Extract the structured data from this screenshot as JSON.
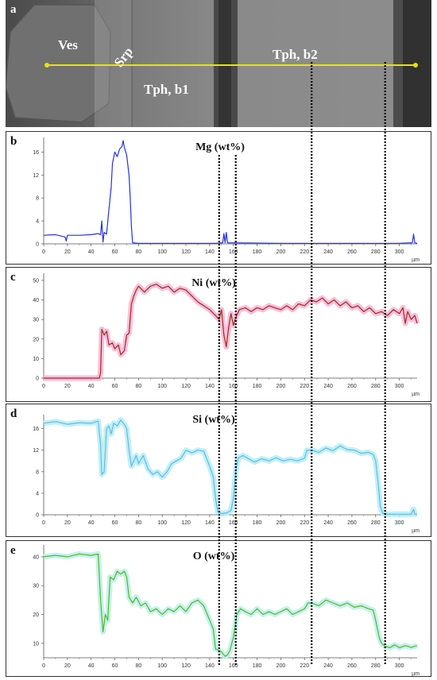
{
  "sem": {
    "letter": "a",
    "labels": [
      {
        "text": "Ves"
      },
      {
        "text": "Srp"
      },
      {
        "text": "Tph, b1"
      },
      {
        "text": "Tph, b2"
      }
    ]
  },
  "colors": {
    "mg": "#2233dd",
    "ni": "#a02a1a",
    "ni_glow": "#f7b8d8",
    "si": "#66b8ea",
    "si_glow": "#b8eef5",
    "o": "#55b81f",
    "o_glow": "#bff0f0",
    "guide": "#e6e600"
  },
  "chart_data": [
    {
      "type": "line",
      "letter": "b",
      "title": "Mg (wt%)",
      "unit_label": "µm",
      "xlim": [
        0,
        315
      ],
      "ylim": [
        0,
        18
      ],
      "x_ticks": [
        0,
        20,
        40,
        60,
        80,
        100,
        120,
        140,
        160,
        180,
        200,
        220,
        240,
        260,
        280,
        300
      ],
      "y_ticks": [
        0,
        4,
        8,
        12,
        16
      ],
      "series": [
        {
          "points": [
            [
              0,
              1.5
            ],
            [
              10,
              1.6
            ],
            [
              18,
              1.2
            ],
            [
              19,
              0.5
            ],
            [
              20,
              1.5
            ],
            [
              30,
              1.5
            ],
            [
              40,
              1.6
            ],
            [
              46,
              1.8
            ],
            [
              48,
              1.6
            ],
            [
              49,
              4
            ],
            [
              50,
              0.3
            ],
            [
              51,
              2
            ],
            [
              53,
              1.7
            ],
            [
              55,
              6
            ],
            [
              57,
              10
            ],
            [
              58,
              14
            ],
            [
              60,
              16
            ],
            [
              62,
              15.2
            ],
            [
              64,
              16.5
            ],
            [
              66,
              17
            ],
            [
              67,
              18
            ],
            [
              68,
              16.8
            ],
            [
              70,
              15.5
            ],
            [
              72,
              12
            ],
            [
              73,
              8
            ],
            [
              74,
              3
            ],
            [
              75,
              0.2
            ],
            [
              80,
              0.1
            ],
            [
              145,
              0.1
            ],
            [
              151,
              0.2
            ],
            [
              152,
              1.8
            ],
            [
              153,
              0.2
            ],
            [
              154,
              2
            ],
            [
              155,
              0.2
            ],
            [
              200,
              0.1
            ],
            [
              300,
              0.1
            ],
            [
              311,
              0.2
            ],
            [
              312,
              1.7
            ],
            [
              313,
              0.2
            ],
            [
              315,
              0.1
            ]
          ]
        }
      ]
    },
    {
      "type": "line",
      "letter": "c",
      "title": "Ni (wt%)",
      "unit_label": "µm",
      "xlim": [
        0,
        315
      ],
      "ylim": [
        0,
        52
      ],
      "x_ticks": [
        0,
        20,
        40,
        60,
        80,
        100,
        120,
        140,
        160,
        180,
        200,
        220,
        240,
        260,
        280,
        300
      ],
      "y_ticks": [
        0,
        10,
        20,
        30,
        40,
        50
      ],
      "series": [
        {
          "points": [
            [
              0,
              0
            ],
            [
              47,
              0
            ],
            [
              48,
              3
            ],
            [
              49,
              25
            ],
            [
              51,
              22
            ],
            [
              53,
              24
            ],
            [
              55,
              17
            ],
            [
              58,
              18
            ],
            [
              60,
              15
            ],
            [
              63,
              17
            ],
            [
              65,
              12
            ],
            [
              68,
              14
            ],
            [
              70,
              22
            ],
            [
              72,
              23
            ],
            [
              74,
              38
            ],
            [
              76,
              42
            ],
            [
              78,
              45
            ],
            [
              80,
              47
            ],
            [
              85,
              44
            ],
            [
              90,
              47
            ],
            [
              95,
              48
            ],
            [
              100,
              46
            ],
            [
              105,
              47
            ],
            [
              110,
              44
            ],
            [
              115,
              46
            ],
            [
              120,
              45
            ],
            [
              125,
              42
            ],
            [
              130,
              39
            ],
            [
              135,
              37
            ],
            [
              140,
              35
            ],
            [
              145,
              32
            ],
            [
              148,
              30
            ],
            [
              150,
              35
            ],
            [
              152,
              22
            ],
            [
              154,
              16
            ],
            [
              156,
              26
            ],
            [
              158,
              33
            ],
            [
              160,
              27
            ],
            [
              162,
              31
            ],
            [
              165,
              35
            ],
            [
              170,
              36
            ],
            [
              175,
              34
            ],
            [
              180,
              36
            ],
            [
              185,
              35
            ],
            [
              190,
              37
            ],
            [
              195,
              36
            ],
            [
              200,
              35
            ],
            [
              205,
              37
            ],
            [
              210,
              35
            ],
            [
              215,
              38
            ],
            [
              220,
              37
            ],
            [
              225,
              40
            ],
            [
              230,
              39
            ],
            [
              235,
              41
            ],
            [
              240,
              38
            ],
            [
              245,
              40
            ],
            [
              250,
              37
            ],
            [
              255,
              39
            ],
            [
              260,
              36
            ],
            [
              265,
              37
            ],
            [
              270,
              34
            ],
            [
              275,
              36
            ],
            [
              280,
              33
            ],
            [
              285,
              34
            ],
            [
              290,
              32
            ],
            [
              295,
              35
            ],
            [
              300,
              33
            ],
            [
              303,
              36
            ],
            [
              305,
              28
            ],
            [
              307,
              34
            ],
            [
              310,
              30
            ],
            [
              313,
              32
            ],
            [
              315,
              28
            ]
          ]
        }
      ]
    },
    {
      "type": "line",
      "letter": "d",
      "title": "Si (wt%)",
      "unit_label": "µm",
      "xlim": [
        0,
        315
      ],
      "ylim": [
        0,
        18
      ],
      "x_ticks": [
        0,
        20,
        40,
        60,
        80,
        100,
        120,
        140,
        160,
        180,
        200,
        220,
        240,
        260,
        280,
        300
      ],
      "y_ticks": [
        0,
        4,
        8,
        12,
        16
      ],
      "series": [
        {
          "points": [
            [
              0,
              17
            ],
            [
              10,
              17.3
            ],
            [
              20,
              16.8
            ],
            [
              30,
              17.1
            ],
            [
              40,
              17
            ],
            [
              46,
              17.4
            ],
            [
              48,
              13
            ],
            [
              49,
              7.5
            ],
            [
              51,
              8
            ],
            [
              53,
              16
            ],
            [
              55,
              16.5
            ],
            [
              57,
              15
            ],
            [
              59,
              17
            ],
            [
              62,
              16.5
            ],
            [
              65,
              17.6
            ],
            [
              68,
              16.8
            ],
            [
              70,
              16
            ],
            [
              72,
              12
            ],
            [
              74,
              9
            ],
            [
              76,
              10
            ],
            [
              78,
              11
            ],
            [
              80,
              9.5
            ],
            [
              84,
              11
            ],
            [
              88,
              8.5
            ],
            [
              92,
              7.5
            ],
            [
              96,
              8
            ],
            [
              100,
              7
            ],
            [
              104,
              8
            ],
            [
              108,
              9.5
            ],
            [
              112,
              10
            ],
            [
              116,
              10.5
            ],
            [
              120,
              12
            ],
            [
              125,
              11.5
            ],
            [
              130,
              12
            ],
            [
              135,
              11.8
            ],
            [
              140,
              9
            ],
            [
              143,
              7
            ],
            [
              145,
              3
            ],
            [
              147,
              0.5
            ],
            [
              150,
              0.2
            ],
            [
              155,
              0.4
            ],
            [
              158,
              0.8
            ],
            [
              160,
              3
            ],
            [
              162,
              8
            ],
            [
              164,
              10.5
            ],
            [
              168,
              11
            ],
            [
              172,
              10.5
            ],
            [
              178,
              9.8
            ],
            [
              184,
              10.4
            ],
            [
              190,
              10
            ],
            [
              196,
              10.6
            ],
            [
              202,
              10
            ],
            [
              208,
              10.3
            ],
            [
              214,
              10
            ],
            [
              220,
              10.5
            ],
            [
              222,
              12
            ],
            [
              226,
              12
            ],
            [
              232,
              11.6
            ],
            [
              238,
              12.4
            ],
            [
              244,
              11.9
            ],
            [
              250,
              12.8
            ],
            [
              256,
              12.1
            ],
            [
              262,
              12
            ],
            [
              268,
              11.4
            ],
            [
              274,
              11.6
            ],
            [
              278,
              11.2
            ],
            [
              280,
              10
            ],
            [
              282,
              6
            ],
            [
              284,
              1.5
            ],
            [
              286,
              0.3
            ],
            [
              290,
              0.1
            ],
            [
              310,
              0.1
            ],
            [
              312,
              1
            ],
            [
              313,
              0.1
            ],
            [
              315,
              0.1
            ]
          ]
        }
      ]
    },
    {
      "type": "line",
      "letter": "e",
      "title": "O (wt%)",
      "unit_label": "µm",
      "xlim": [
        0,
        315
      ],
      "ylim": [
        5,
        43
      ],
      "x_ticks": [
        0,
        20,
        40,
        60,
        80,
        100,
        120,
        140,
        160,
        180,
        200,
        220,
        240,
        260,
        280,
        300
      ],
      "y_ticks": [
        10,
        20,
        30,
        40
      ],
      "series": [
        {
          "points": [
            [
              0,
              40
            ],
            [
              10,
              40.5
            ],
            [
              20,
              40
            ],
            [
              30,
              41
            ],
            [
              40,
              40.5
            ],
            [
              46,
              41
            ],
            [
              48,
              25
            ],
            [
              50,
              14
            ],
            [
              52,
              20
            ],
            [
              54,
              18
            ],
            [
              56,
              33
            ],
            [
              59,
              32
            ],
            [
              62,
              35
            ],
            [
              65,
              34
            ],
            [
              68,
              35
            ],
            [
              70,
              33
            ],
            [
              72,
              26
            ],
            [
              75,
              24
            ],
            [
              78,
              26
            ],
            [
              82,
              23
            ],
            [
              86,
              24
            ],
            [
              90,
              21
            ],
            [
              95,
              22
            ],
            [
              100,
              20
            ],
            [
              105,
              22
            ],
            [
              110,
              21
            ],
            [
              115,
              23
            ],
            [
              120,
              21
            ],
            [
              125,
              24
            ],
            [
              130,
              25
            ],
            [
              135,
              23
            ],
            [
              140,
              18
            ],
            [
              143,
              15
            ],
            [
              145,
              8
            ],
            [
              148,
              7.5
            ],
            [
              150,
              7
            ],
            [
              153,
              5.5
            ],
            [
              155,
              6
            ],
            [
              157,
              7.5
            ],
            [
              160,
              12
            ],
            [
              163,
              20
            ],
            [
              166,
              22
            ],
            [
              170,
              21
            ],
            [
              175,
              20
            ],
            [
              180,
              22
            ],
            [
              185,
              20
            ],
            [
              190,
              21
            ],
            [
              195,
              20
            ],
            [
              200,
              21
            ],
            [
              205,
              22
            ],
            [
              210,
              20
            ],
            [
              215,
              21
            ],
            [
              220,
              22
            ],
            [
              223,
              24
            ],
            [
              226,
              24
            ],
            [
              232,
              23
            ],
            [
              238,
              25
            ],
            [
              244,
              24
            ],
            [
              250,
              23
            ],
            [
              256,
              24
            ],
            [
              262,
              22.5
            ],
            [
              268,
              23
            ],
            [
              274,
              22
            ],
            [
              278,
              21.5
            ],
            [
              280,
              18
            ],
            [
              283,
              12
            ],
            [
              285,
              10
            ],
            [
              288,
              9
            ],
            [
              292,
              8.5
            ],
            [
              296,
              9.5
            ],
            [
              300,
              8.5
            ],
            [
              305,
              9.2
            ],
            [
              310,
              8.6
            ],
            [
              315,
              9.2
            ]
          ]
        }
      ]
    }
  ],
  "markers_um": [
    148,
    162,
    226,
    288
  ]
}
